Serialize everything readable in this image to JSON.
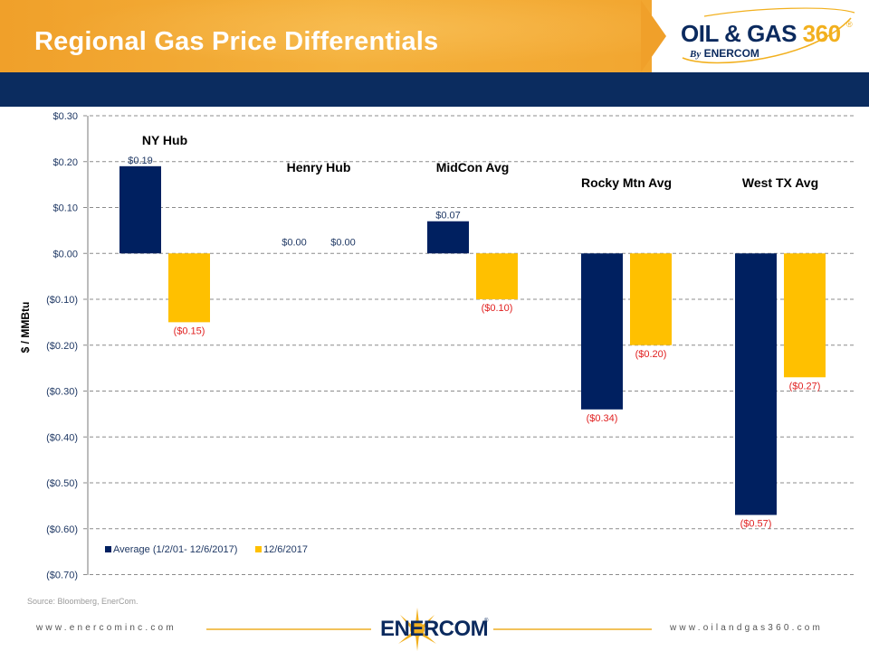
{
  "header": {
    "title": "Regional Gas Price Differentials",
    "logo_text_main": "OIL & GAS",
    "logo_text_accent": "360",
    "logo_registered": "®",
    "logo_by_prefix": "By",
    "logo_by_brand": "ENERCOM"
  },
  "colors": {
    "header_orange": "#f0a02a",
    "band_navy": "#0b2c5f",
    "series_average": "#002060",
    "series_current": "#ffc000",
    "negative_label": "#e02020",
    "positive_label": "#1f3864"
  },
  "chart_data": {
    "type": "bar",
    "title": "Regional Gas Price Differentials",
    "xlabel": "",
    "ylabel": "$ / MMBtu",
    "ylim": [
      -0.7,
      0.3
    ],
    "yticks": [
      0.3,
      0.2,
      0.1,
      0.0,
      -0.1,
      -0.2,
      -0.3,
      -0.4,
      -0.5,
      -0.6,
      -0.7
    ],
    "ytick_labels": [
      "$0.30",
      "$0.20",
      "$0.10",
      "$0.00",
      "($0.10)",
      "($0.20)",
      "($0.30)",
      "($0.40)",
      "($0.50)",
      "($0.60)",
      "($0.70)"
    ],
    "grid": true,
    "legend_position": "bottom-left",
    "categories": [
      "NY Hub",
      "Henry Hub",
      "MidCon Avg",
      "Rocky Mtn Avg",
      "West TX Avg"
    ],
    "series": [
      {
        "name": "Average (1/2/01- 12/6/2017)",
        "color": "#002060",
        "values": [
          0.19,
          0.0,
          0.07,
          -0.34,
          -0.57
        ],
        "labels": [
          "$0.19",
          "$0.00",
          "$0.07",
          "($0.34)",
          "($0.57)"
        ]
      },
      {
        "name": "12/6/2017",
        "color": "#ffc000",
        "values": [
          -0.15,
          0.0,
          -0.1,
          -0.2,
          -0.27
        ],
        "labels": [
          "($0.15)",
          "$0.00",
          "($0.10)",
          "($0.20)",
          "($0.27)"
        ]
      }
    ]
  },
  "footer": {
    "source": "Source: Bloomberg, EnerCom.",
    "left_url": "www.enercominc.com",
    "right_url": "www.oilandgas360.com",
    "logo": "ENERCOM",
    "logo_registered": "®"
  }
}
